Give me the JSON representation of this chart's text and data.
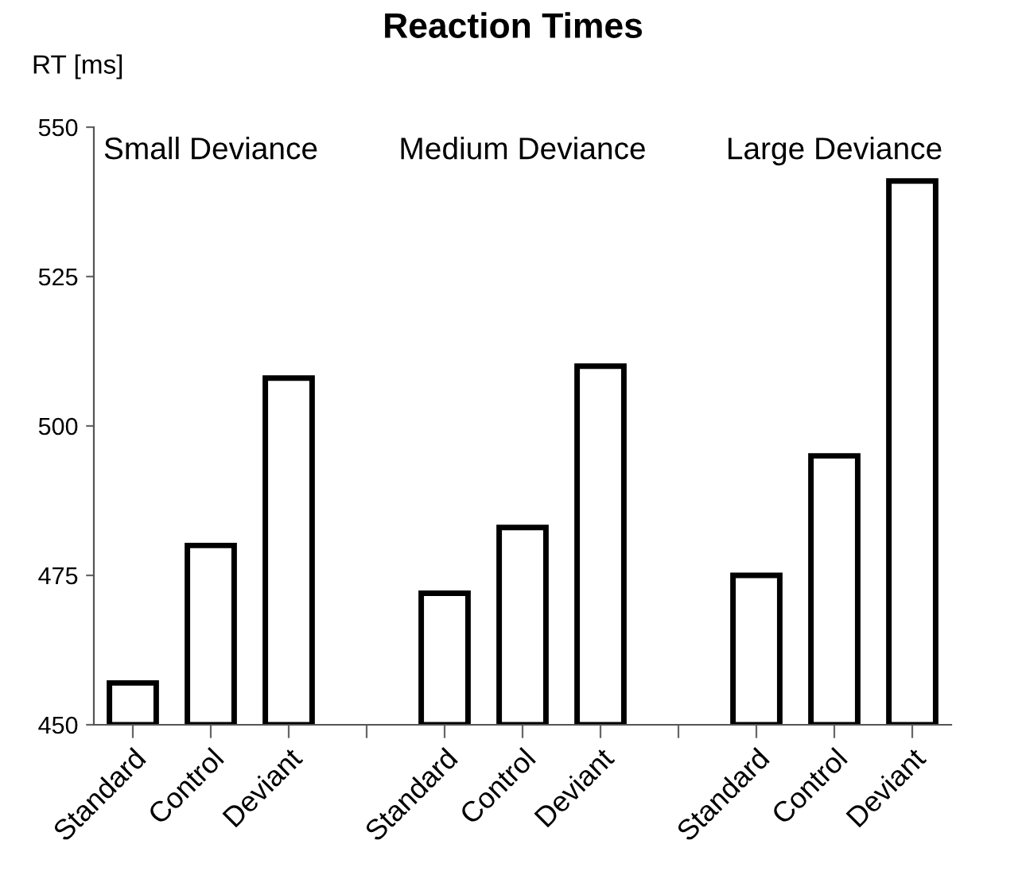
{
  "chart_data": {
    "type": "bar",
    "title": "Reaction Times",
    "ylabel": "RT [ms]",
    "categories": [
      "Standard",
      "Control",
      "Deviant",
      null,
      "Standard",
      "Control",
      "Deviant",
      null,
      "Standard",
      "Control",
      "Deviant"
    ],
    "values": [
      457,
      480,
      508,
      null,
      472,
      483,
      510,
      null,
      475,
      495,
      541
    ],
    "color": "#ffffff",
    "ylim": [
      450,
      550
    ],
    "yticks": [
      450,
      475,
      500,
      525,
      550
    ],
    "grid": false,
    "annotations": [
      "Small Deviance",
      "Medium Deviance",
      "Large Deviance"
    ]
  }
}
